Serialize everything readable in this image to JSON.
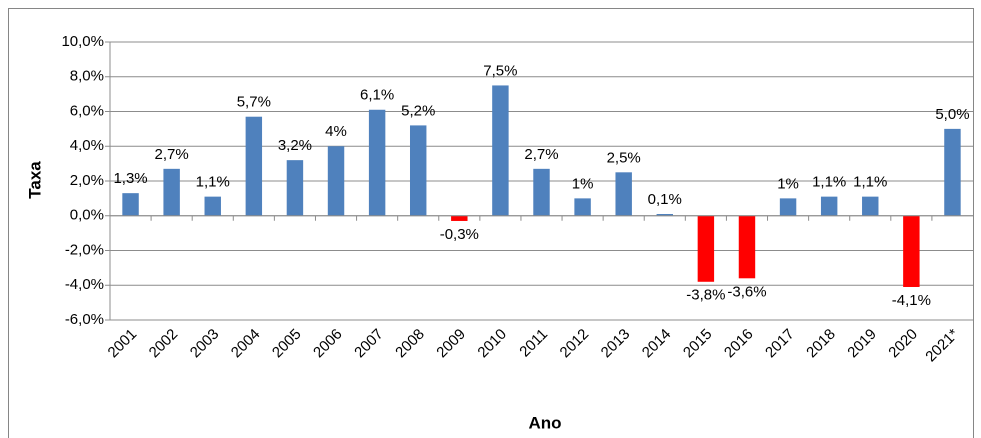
{
  "chart_data": {
    "type": "bar",
    "x_label": "Ano",
    "y_label": "Taxa",
    "categories": [
      "2001",
      "2002",
      "2003",
      "2004",
      "2005",
      "2006",
      "2007",
      "2008",
      "2009",
      "2010",
      "2011",
      "2012",
      "2013",
      "2014",
      "2015",
      "2016",
      "2017",
      "2018",
      "2019",
      "2020",
      "2021*"
    ],
    "values": [
      1.3,
      2.7,
      1.1,
      5.7,
      3.2,
      4,
      6.1,
      5.2,
      -0.3,
      7.5,
      2.7,
      1,
      2.5,
      0.1,
      -3.8,
      -3.6,
      1,
      1.1,
      1.1,
      -4.1,
      5.0
    ],
    "value_labels": [
      "1,3%",
      "2,7%",
      "1,1%",
      "5,7%",
      "3,2%",
      "4%",
      "6,1%",
      "5,2%",
      "-0,3%",
      "7,5%",
      "2,7%",
      "1%",
      "2,5%",
      "0,1%",
      "-3,8%",
      "-3,6%",
      "1%",
      "1,1%",
      "1,1%",
      "-4,1%",
      "5,0%"
    ],
    "color": "#4f81bd",
    "negative_color": "#ff0000",
    "ylim": [
      -6,
      10
    ],
    "yticks": [
      {
        "value": -6,
        "label": "-6,0%"
      },
      {
        "value": -4,
        "label": "-4,0%"
      },
      {
        "value": -2,
        "label": "-2,0%"
      },
      {
        "value": 0,
        "label": "0,0%"
      },
      {
        "value": 2,
        "label": "2,0%"
      },
      {
        "value": 4,
        "label": "4,0%"
      },
      {
        "value": 6,
        "label": "6,0%"
      },
      {
        "value": 8,
        "label": "8,0%"
      },
      {
        "value": 10,
        "label": "10,0%"
      }
    ],
    "grid": true
  }
}
